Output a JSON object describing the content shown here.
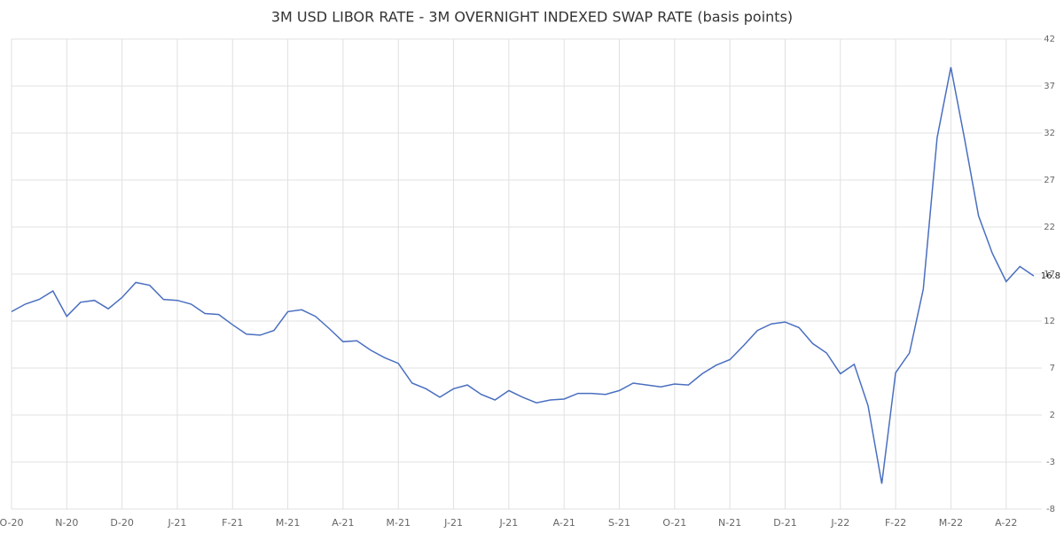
{
  "chart_data": {
    "type": "line",
    "title": "3M USD LIBOR RATE - 3M OVERNIGHT INDEXED SWAP RATE (basis points)",
    "categories": [
      "O-20",
      null,
      null,
      null,
      "N-20",
      null,
      null,
      null,
      "D-20",
      null,
      null,
      null,
      "J-21",
      null,
      null,
      null,
      "F-21",
      null,
      null,
      null,
      "M-21",
      null,
      null,
      null,
      "A-21",
      null,
      null,
      null,
      "M-21",
      null,
      null,
      null,
      "J-21",
      null,
      null,
      null,
      "J-21",
      null,
      null,
      null,
      "A-21",
      null,
      null,
      null,
      "S-21",
      null,
      null,
      null,
      "O-21",
      null,
      null,
      null,
      "N-21",
      null,
      null,
      null,
      "D-21",
      null,
      null,
      null,
      "J-22",
      null,
      null,
      null,
      "F-22",
      null,
      null,
      null,
      "M-22",
      null,
      null,
      null,
      "A-22",
      null,
      null
    ],
    "values": [
      13,
      13.8,
      14.3,
      15.2,
      12.5,
      14,
      14.2,
      13.3,
      14.5,
      16.1,
      15.8,
      14.3,
      14.2,
      13.8,
      12.8,
      12.7,
      11.6,
      10.6,
      10.5,
      11,
      13,
      13.2,
      12.5,
      11.2,
      9.8,
      9.9,
      8.9,
      8.1,
      7.5,
      5.4,
      4.8,
      3.9,
      4.8,
      5.2,
      4.2,
      3.6,
      4.6,
      3.9,
      3.3,
      3.6,
      3.7,
      4.3,
      4.3,
      4.2,
      4.6,
      5.4,
      5.2,
      5.0,
      5.3,
      5.2,
      6.4,
      7.3,
      7.9,
      9.4,
      11,
      11.7,
      11.9,
      11.3,
      9.6,
      8.6,
      6.4,
      7.4,
      3.0,
      -5.3,
      6.5,
      8.6,
      15.4,
      31.5,
      39,
      31.3,
      23.2,
      19.2,
      16.2,
      17.8,
      16.8
    ],
    "color": "#4a6fc0",
    "ylim": [
      -8,
      42
    ],
    "yticks": [
      -8,
      -3,
      2,
      7,
      12,
      17,
      22,
      27,
      32,
      37,
      42
    ],
    "grid": true
  }
}
